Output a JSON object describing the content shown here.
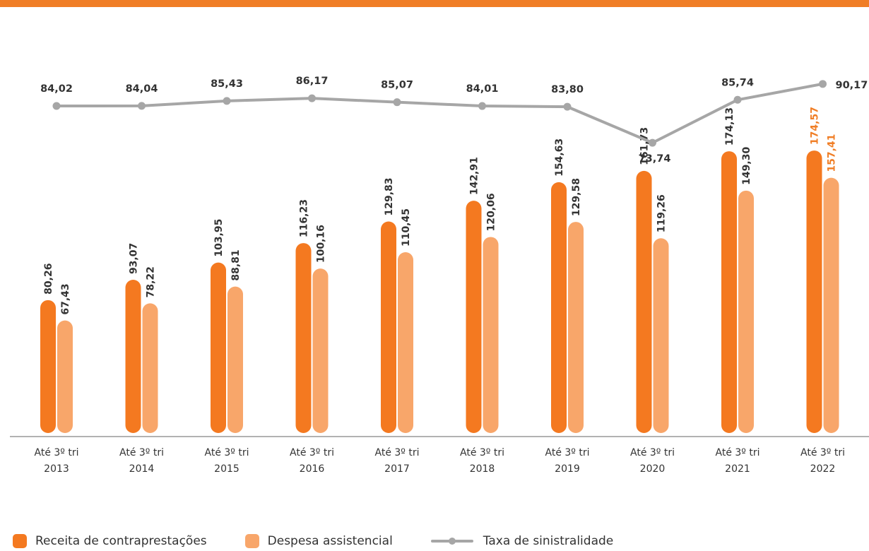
{
  "colors": {
    "accent": "#F07E26",
    "receita": "#F47920",
    "despesa": "#F8A66A",
    "taxa": "#A6A6A6",
    "highlight_label": "#F07E26",
    "text": "#333333",
    "axis": "#999999"
  },
  "chart_data": {
    "type": "bar",
    "categories": [
      "Até 3º tri 2013",
      "Até 3º tri 2014",
      "Até 3º tri 2015",
      "Até 3º tri 2016",
      "Até 3º tri 2017",
      "Até 3º tri 2018",
      "Até 3º tri 2019",
      "Até 3º tri 2020",
      "Até 3º tri 2021",
      "Até 3º tri 2022"
    ],
    "category_lines": [
      [
        "Até 3º tri",
        "2013"
      ],
      [
        "Até 3º tri",
        "2014"
      ],
      [
        "Até 3º tri",
        "2015"
      ],
      [
        "Até 3º tri",
        "2016"
      ],
      [
        "Até 3º tri",
        "2017"
      ],
      [
        "Até 3º tri",
        "2018"
      ],
      [
        "Até 3º tri",
        "2019"
      ],
      [
        "Até 3º tri",
        "2020"
      ],
      [
        "Até 3º tri",
        "2021"
      ],
      [
        "Até 3º tri",
        "2022"
      ]
    ],
    "series": [
      {
        "name": "Receita de contraprestações",
        "kind": "bar",
        "values": [
          80.26,
          93.07,
          103.95,
          116.23,
          129.83,
          142.91,
          154.63,
          161.73,
          174.13,
          174.57
        ],
        "labels": [
          "80,26",
          "93,07",
          "103,95",
          "116,23",
          "129,83",
          "142,91",
          "154,63",
          "161,73",
          "174,13",
          "174,57"
        ]
      },
      {
        "name": "Despesa assistencial",
        "kind": "bar",
        "values": [
          67.43,
          78.22,
          88.81,
          100.16,
          110.45,
          120.06,
          129.58,
          119.26,
          149.3,
          157.41
        ],
        "labels": [
          "67,43",
          "78,22",
          "88,81",
          "100,16",
          "110,45",
          "120,06",
          "129,58",
          "119,26",
          "149,30",
          "157,41"
        ]
      },
      {
        "name": "Taxa de sinistralidade",
        "kind": "line",
        "values": [
          84.02,
          84.04,
          85.43,
          86.17,
          85.07,
          84.01,
          83.8,
          73.74,
          85.74,
          90.17
        ],
        "labels": [
          "84,02",
          "84,04",
          "85,43",
          "86,17",
          "85,07",
          "84,01",
          "83,80",
          "73,74",
          "85,74",
          "90,17"
        ]
      }
    ],
    "bar_ylim": [
      0,
      200
    ],
    "line_ylim": [
      52,
      93
    ],
    "grid": false,
    "legend_position": "bottom-left"
  }
}
